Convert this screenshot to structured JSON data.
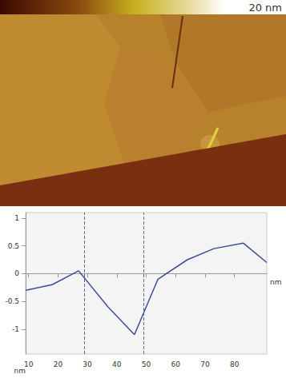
{
  "chart_data": {
    "type": "line",
    "x": [
      9,
      18,
      27,
      37,
      46,
      54,
      64,
      73,
      83,
      91
    ],
    "values": [
      -0.3,
      -0.2,
      0.05,
      -0.6,
      -1.1,
      -0.1,
      0.25,
      0.45,
      0.55,
      0.2
    ],
    "color": "#3b4f96",
    "xlim": [
      9,
      91
    ],
    "xticks": [
      10,
      20,
      30,
      40,
      50,
      60,
      70,
      80
    ],
    "ylim": [
      -1.45,
      1.1
    ],
    "yticks": [
      -1,
      -0.5,
      0,
      0.5,
      1
    ],
    "xlabel": "nm",
    "ylabel": "nm",
    "cursor_x": [
      29,
      49
    ],
    "grid": false
  },
  "image": {
    "scale_label": "20 nm"
  }
}
